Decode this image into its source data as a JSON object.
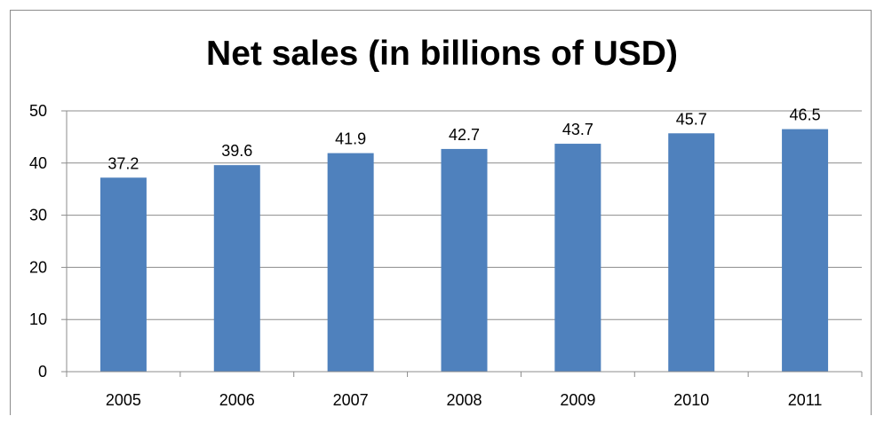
{
  "chart_data": {
    "type": "bar",
    "title": "Net sales (in billions of USD)",
    "xlabel": "",
    "ylabel": "",
    "categories": [
      "2005",
      "2006",
      "2007",
      "2008",
      "2009",
      "2010",
      "2011"
    ],
    "values": [
      37.2,
      39.6,
      41.9,
      42.7,
      43.7,
      45.7,
      46.5
    ],
    "value_labels": [
      "37.2",
      "39.6",
      "41.9",
      "42.7",
      "43.7",
      "45.7",
      "46.5"
    ],
    "ylim": [
      0,
      50
    ],
    "yticks": [
      "0",
      "10",
      "20",
      "30",
      "40",
      "50"
    ],
    "grid": true,
    "legend": "none",
    "bar_color": "#4f81bd",
    "grid_color": "#8c8c8c"
  }
}
